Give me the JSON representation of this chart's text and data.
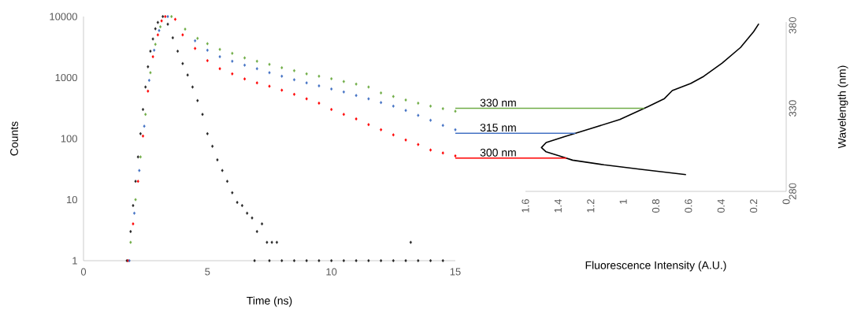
{
  "chart_data": [
    {
      "type": "scatter",
      "xlabel": "Time (ns)",
      "ylabel": "Counts",
      "xlim": [
        0,
        15
      ],
      "ylim": [
        1,
        10000
      ],
      "xticks": [
        0,
        5,
        10,
        15
      ],
      "yticks": [
        1,
        10,
        100,
        1000,
        10000
      ],
      "log": "y",
      "marker": "diamond",
      "series": [
        {
          "color": "#262626",
          "x": [
            1.75,
            1.9,
            2.0,
            2.1,
            2.2,
            2.3,
            2.4,
            2.5,
            2.6,
            2.7,
            2.8,
            2.9,
            3.0,
            3.1,
            3.2,
            3.4,
            3.6,
            3.8,
            4.0,
            4.2,
            4.4,
            4.6,
            4.8,
            5.0,
            5.2,
            5.4,
            5.6,
            5.8,
            6.0,
            6.2,
            6.4,
            6.6,
            6.8,
            7.0,
            7.2,
            7.4,
            7.6,
            7.8,
            6.9,
            7.5,
            8.0,
            8.5,
            9.0,
            9.5,
            10.0,
            10.5,
            11.0,
            11.5,
            12.0,
            12.5,
            13.0,
            13.2,
            13.5,
            14.0,
            14.5
          ],
          "values": [
            1,
            3,
            8,
            20,
            50,
            120,
            300,
            700,
            1500,
            2700,
            4300,
            6300,
            8000,
            null,
            10000,
            7500,
            4500,
            2700,
            1700,
            1100,
            700,
            420,
            250,
            120,
            75,
            45,
            30,
            20,
            13,
            9,
            8,
            6,
            5,
            3,
            4,
            2,
            2,
            2,
            1,
            1,
            1,
            1,
            1,
            1,
            1,
            1,
            1,
            1,
            1,
            1,
            1,
            2,
            1,
            1,
            1
          ]
        },
        {
          "color": "#ff0000",
          "x": [
            1.8,
            2.0,
            2.2,
            2.4,
            2.6,
            2.8,
            3.0,
            3.15,
            3.3,
            3.7,
            4.0,
            4.5,
            5.0,
            5.5,
            6.0,
            6.5,
            7.0,
            7.5,
            8.0,
            8.5,
            9.0,
            9.5,
            10.0,
            10.5,
            11.0,
            11.5,
            12.0,
            12.5,
            13.0,
            13.5,
            14.0,
            14.5,
            15.0
          ],
          "values": [
            1,
            4,
            20,
            110,
            600,
            2200,
            5000,
            8500,
            10000,
            9000,
            5000,
            3000,
            1900,
            1400,
            1150,
            950,
            820,
            720,
            620,
            530,
            450,
            380,
            300,
            250,
            210,
            170,
            140,
            115,
            95,
            80,
            65,
            58,
            52
          ]
        },
        {
          "color": "#4472c4",
          "x": [
            1.85,
            2.05,
            2.25,
            2.45,
            2.65,
            2.85,
            3.05,
            3.4,
            4.5,
            5.0,
            5.5,
            6.0,
            6.5,
            7.0,
            7.5,
            8.0,
            8.5,
            9.0,
            9.5,
            10.0,
            10.5,
            11.0,
            11.5,
            12.0,
            12.5,
            13.0,
            13.5,
            14.0,
            14.5,
            15.0
          ],
          "values": [
            1,
            6,
            30,
            160,
            900,
            2800,
            5900,
            10000,
            4000,
            2800,
            2200,
            1850,
            1600,
            1400,
            1200,
            1050,
            920,
            820,
            730,
            650,
            580,
            510,
            450,
            390,
            340,
            290,
            240,
            200,
            165,
            140
          ]
        },
        {
          "color": "#70ad47",
          "x": [
            1.9,
            2.1,
            2.3,
            2.5,
            2.7,
            2.9,
            3.1,
            3.55,
            4.1,
            4.6,
            5.0,
            5.5,
            6.0,
            6.5,
            7.0,
            7.5,
            8.0,
            8.5,
            9.0,
            9.5,
            10.0,
            10.5,
            11.0,
            11.5,
            12.0,
            12.5,
            13.0,
            13.5,
            14.0,
            14.5,
            15.0
          ],
          "values": [
            2,
            10,
            50,
            250,
            1200,
            3500,
            6800,
            10000,
            6200,
            4400,
            3600,
            2900,
            2500,
            2100,
            1850,
            1650,
            1450,
            1300,
            1150,
            1050,
            960,
            860,
            780,
            700,
            560,
            490,
            430,
            380,
            340,
            310,
            280
          ]
        }
      ]
    },
    {
      "type": "line",
      "xlabel": "Fluorescence Intensity (A.U.)",
      "ylabel": "Wavelength (nm)",
      "xlim": [
        1.6,
        0
      ],
      "ylim": [
        280,
        382
      ],
      "xticks": [
        1.6,
        1.4,
        1.2,
        1,
        0.8,
        0.6,
        0.4,
        0.2,
        0
      ],
      "yticks": [
        280,
        330,
        380
      ],
      "marker": "none",
      "series": [
        {
          "color": "#000000",
          "x": [
            0.615,
            0.893,
            1.118,
            1.311,
            1.376,
            1.473,
            1.502,
            1.473,
            1.36,
            1.199,
            1.021,
            0.844,
            0.747,
            0.699,
            0.586,
            0.506,
            0.393,
            0.28,
            0.2,
            0.168
          ],
          "values": [
            290.1,
            293.3,
            296,
            298.8,
            300.9,
            303.8,
            306.4,
            309.4,
            313,
            317.8,
            323.3,
            331.2,
            335.9,
            340.7,
            345,
            349.3,
            357.3,
            366.7,
            376.2,
            381
          ]
        }
      ],
      "ref_lines": [
        {
          "axis": "y",
          "value": 330,
          "label": "330 nm",
          "color": "#70ad47"
        },
        {
          "axis": "y",
          "value": 315,
          "label": "315 nm",
          "color": "#4472c4"
        },
        {
          "axis": "y",
          "value": 300,
          "label": "300 nm",
          "color": "#ff0000"
        }
      ]
    }
  ]
}
